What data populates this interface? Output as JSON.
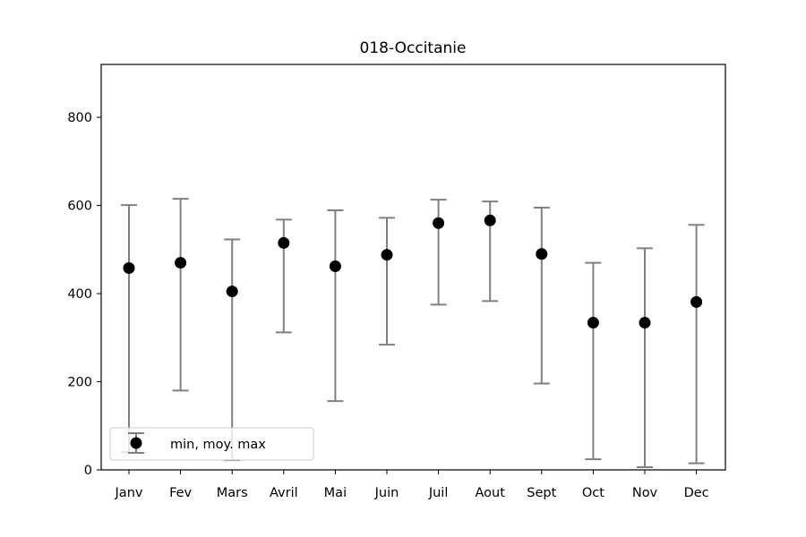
{
  "chart_data": {
    "type": "scatter",
    "title": "018-Occitanie",
    "xlabel": "",
    "ylabel": "",
    "categories": [
      "Janv",
      "Fev",
      "Mars",
      "Avril",
      "Mai",
      "Juin",
      "Juil",
      "Aout",
      "Sept",
      "Oct",
      "Nov",
      "Dec"
    ],
    "series": [
      {
        "name": "min, moy. max",
        "mean": [
          458,
          470,
          405,
          515,
          462,
          488,
          560,
          566,
          490,
          334,
          334,
          381
        ],
        "min": [
          40,
          180,
          22,
          312,
          156,
          284,
          375,
          383,
          196,
          24,
          6,
          15
        ],
        "max": [
          601,
          615,
          523,
          568,
          589,
          572,
          613,
          609,
          595,
          470,
          503,
          556
        ],
        "marker_color": "#000000",
        "errorbar_color": "#808080"
      }
    ],
    "ylim": [
      0,
      920
    ],
    "yticks": [
      0,
      200,
      400,
      600,
      800
    ],
    "grid": false,
    "legend_position": "lower-left"
  }
}
